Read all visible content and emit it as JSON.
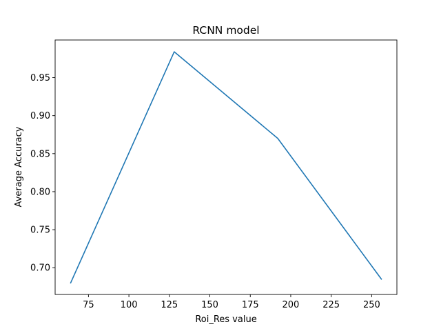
{
  "chart_data": {
    "type": "line",
    "title": "RCNN model",
    "xlabel": "Roi_Res value",
    "ylabel": "Average Accuracy",
    "xlim": [
      54.4,
      265.6
    ],
    "ylim": [
      0.6648,
      0.9995
    ],
    "xticks": [
      75,
      100,
      125,
      150,
      175,
      200,
      225,
      250
    ],
    "xtick_labels": [
      "75",
      "100",
      "125",
      "150",
      "175",
      "200",
      "225",
      "250"
    ],
    "yticks": [
      0.7,
      0.75,
      0.8,
      0.85,
      0.9,
      0.95
    ],
    "ytick_labels": [
      "0.70",
      "0.75",
      "0.80",
      "0.85",
      "0.90",
      "0.95"
    ],
    "grid": false,
    "legend": null,
    "series": [
      {
        "color": "#1f77b4",
        "x": [
          64,
          128,
          192,
          256
        ],
        "y": [
          0.68,
          0.984,
          0.87,
          0.685
        ]
      }
    ]
  }
}
